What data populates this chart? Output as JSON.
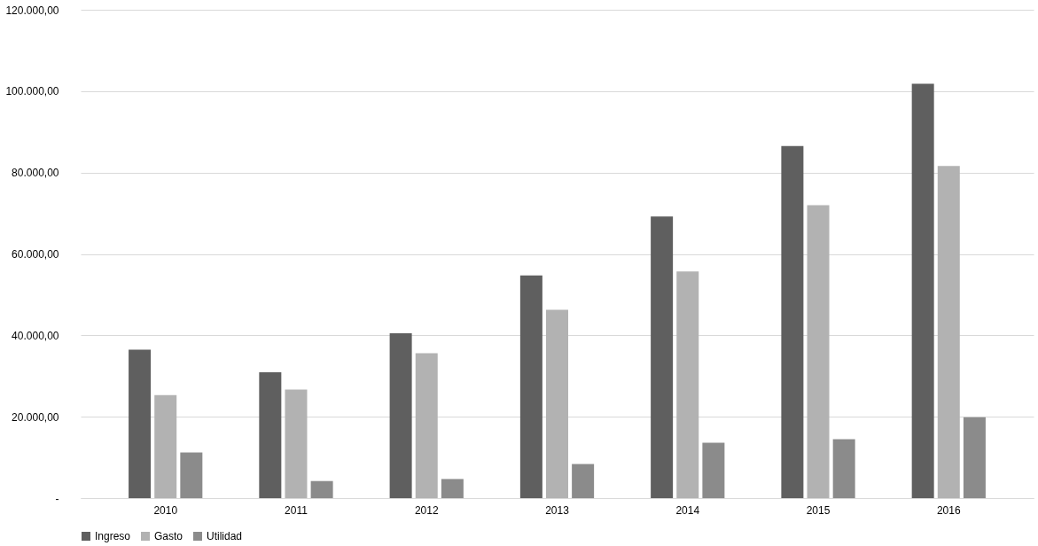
{
  "chart_data": {
    "type": "bar",
    "categories": [
      "2010",
      "2011",
      "2012",
      "2013",
      "2014",
      "2015",
      "2016"
    ],
    "series": [
      {
        "name": "Ingreso",
        "color": "#5f5f5f",
        "values": [
          36500,
          30900,
          40500,
          54700,
          69200,
          86500,
          101800
        ]
      },
      {
        "name": "Gasto",
        "color": "#b2b2b2",
        "values": [
          25300,
          26700,
          35600,
          46300,
          55700,
          72000,
          81600
        ]
      },
      {
        "name": "Utilidad",
        "color": "#8b8b8b",
        "values": [
          11200,
          4200,
          4700,
          8400,
          13600,
          14500,
          19900
        ]
      }
    ],
    "ylim": [
      0,
      120000
    ],
    "yticks": [
      {
        "value": 0,
        "label": "-"
      },
      {
        "value": 20000,
        "label": "20.000,00"
      },
      {
        "value": 40000,
        "label": "40.000,00"
      },
      {
        "value": 60000,
        "label": "60.000,00"
      },
      {
        "value": 80000,
        "label": "80.000,00"
      },
      {
        "value": 100000,
        "label": "100.000,00"
      },
      {
        "value": 120000,
        "label": "120.000,00"
      }
    ],
    "grid": "y",
    "legend": "bottom"
  }
}
